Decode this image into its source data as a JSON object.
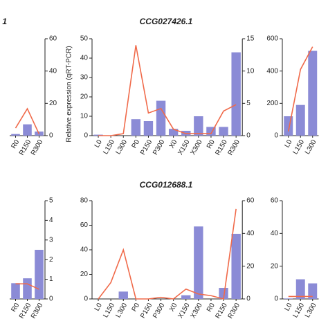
{
  "chart_data": [
    {
      "type": "bar-line",
      "title": "1",
      "categories": [
        "R0",
        "R150",
        "R300"
      ],
      "series": [
        {
          "type": "bar",
          "color": "#8b8bd6",
          "values": [
            1,
            7,
            2.5
          ]
        },
        {
          "type": "line",
          "axis": "y2",
          "color": "#f06a4a",
          "values": [
            4.7,
            16.7,
            1
          ]
        }
      ],
      "ylim": [
        0,
        60
      ],
      "y2lim": [
        0,
        60
      ],
      "y2ticks": [
        0,
        20,
        40,
        60
      ]
    },
    {
      "type": "bar-line",
      "title": "CCG027426.1",
      "ylabel": "Relative expression (qRT-PCR)",
      "categories": [
        "L0",
        "L150",
        "L300",
        "P0",
        "P150",
        "P300",
        "X0",
        "X150",
        "X300",
        "R0",
        "R150",
        "R300"
      ],
      "series": [
        {
          "type": "bar",
          "color": "#8b8bd6",
          "values": [
            0.5,
            0,
            0,
            8.5,
            7.5,
            18,
            3.5,
            2.5,
            10,
            4.5,
            4.5,
            43
          ]
        },
        {
          "type": "line",
          "axis": "y2",
          "color": "#f06a4a",
          "values": [
            0,
            0,
            0.3,
            14,
            3.5,
            4.2,
            1,
            0.3,
            0.3,
            0.3,
            3.8,
            4.8
          ]
        }
      ],
      "ylim": [
        0,
        50
      ],
      "yticks": [
        0,
        10,
        20,
        30,
        40,
        50
      ],
      "y2lim": [
        0,
        15
      ],
      "y2ticks": [
        0,
        5,
        10,
        15
      ]
    },
    {
      "type": "bar-line",
      "categories": [
        "L0",
        "L150",
        "L300"
      ],
      "series": [
        {
          "type": "bar",
          "color": "#8b8bd6",
          "values": [
            120,
            190,
            525
          ]
        },
        {
          "type": "line",
          "axis": "y2",
          "color": "#f06a4a",
          "values": [
            2.6,
            41,
            55
          ]
        }
      ],
      "ylim": [
        0,
        600
      ],
      "yticks": [
        0,
        200,
        400,
        600
      ],
      "y2lim": [
        0,
        60
      ]
    },
    {
      "type": "bar-line",
      "categories": [
        "R0",
        "R150",
        "R300"
      ],
      "series": [
        {
          "type": "bar",
          "color": "#8b8bd6",
          "values": [
            0.8,
            1.05,
            2.5
          ]
        },
        {
          "type": "line",
          "axis": "y2",
          "color": "#f06a4a",
          "values": [
            0.77,
            0.77,
            0.49
          ]
        }
      ],
      "ylim": [
        0,
        5
      ],
      "y2lim": [
        0,
        5
      ],
      "y2ticks": [
        0,
        1,
        2,
        3,
        4,
        5
      ]
    },
    {
      "type": "bar-line",
      "title": "CCG012688.1",
      "categories": [
        "L0",
        "L150",
        "L300",
        "P0",
        "P150",
        "P300",
        "X0",
        "X150",
        "X300",
        "R0",
        "R150",
        "R300"
      ],
      "series": [
        {
          "type": "bar",
          "color": "#8b8bd6",
          "values": [
            0,
            0,
            6,
            0,
            0,
            0,
            0,
            3,
            59,
            0,
            9,
            53
          ]
        },
        {
          "type": "line",
          "axis": "y2",
          "color": "#f06a4a",
          "values": [
            0,
            10,
            30,
            0,
            0,
            1,
            0,
            6,
            3,
            2,
            0,
            55
          ]
        }
      ],
      "ylim": [
        0,
        80
      ],
      "yticks": [
        0,
        20,
        40,
        60,
        80
      ],
      "y2lim": [
        0,
        60
      ],
      "y2ticks": [
        0,
        20,
        40,
        60
      ]
    },
    {
      "type": "bar-line",
      "categories": [
        "L0",
        "L150",
        "L300"
      ],
      "series": [
        {
          "type": "bar",
          "color": "#8b8bd6",
          "values": [
            0.3,
            12,
            9.5
          ]
        },
        {
          "type": "line",
          "axis": "y2",
          "color": "#f06a4a",
          "values": [
            1.5,
            1.5,
            1.5
          ]
        }
      ],
      "ylim": [
        0,
        60
      ],
      "yticks": [
        0,
        20,
        40,
        60
      ],
      "y2lim": [
        0,
        60
      ]
    }
  ]
}
